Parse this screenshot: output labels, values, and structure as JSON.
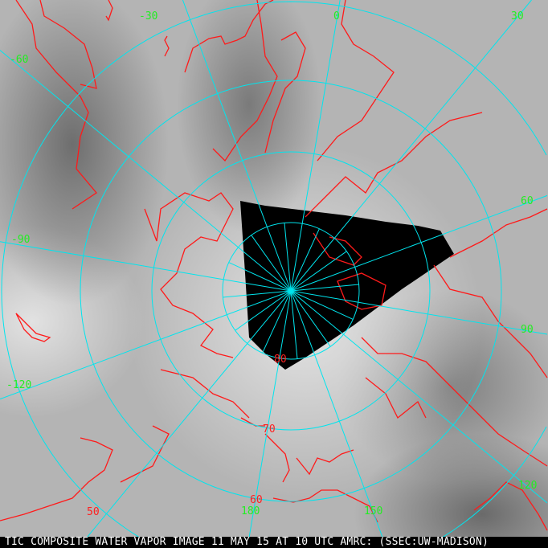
{
  "caption": "TIC COMPOSITE WATER VAPOR IMAGE 11 MAY 15 AT 10 UTC AMRC: (SSEC:UW-MADISON)",
  "longitude_labels": {
    "m60": "-60",
    "m30": "-30",
    "z": "0",
    "p30": "30",
    "p60": "60",
    "p90": "90",
    "p120": "120",
    "p150": "150",
    "p180": "180",
    "m90": "-90",
    "m120": "-120"
  },
  "latitude_labels": {
    "l80": "80",
    "l70": "70",
    "l60": "60",
    "l50": "50"
  },
  "colors": {
    "grid": "#00e5ee",
    "coastline": "#ff1a1a",
    "longitude_label": "#22ee22",
    "latitude_label": "#ff2020",
    "no_data": "#000000"
  }
}
